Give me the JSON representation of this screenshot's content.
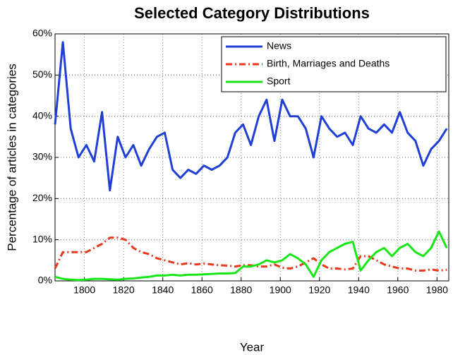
{
  "chart_data": {
    "type": "line",
    "title": "Selected Category Distributions",
    "x_label": "Year",
    "y_label": "Percentage of articles in categories",
    "x": [
      1785,
      1789,
      1793,
      1797,
      1801,
      1805,
      1809,
      1813,
      1817,
      1821,
      1825,
      1829,
      1833,
      1837,
      1841,
      1845,
      1849,
      1853,
      1857,
      1861,
      1865,
      1869,
      1873,
      1877,
      1881,
      1885,
      1889,
      1893,
      1897,
      1901,
      1905,
      1909,
      1913,
      1917,
      1921,
      1925,
      1929,
      1933,
      1937,
      1941,
      1945,
      1949,
      1953,
      1957,
      1961,
      1965,
      1969,
      1973,
      1977,
      1981,
      1985
    ],
    "series": [
      {
        "name": "News",
        "color": "#1f3fd6",
        "dash": "solid",
        "values": [
          38,
          58,
          37,
          30,
          33,
          29,
          41,
          22,
          35,
          30,
          33,
          28,
          32,
          35,
          36,
          27,
          25,
          27,
          26,
          28,
          27,
          28,
          30,
          36,
          38,
          33,
          40,
          44,
          34,
          44,
          40,
          40,
          37,
          30,
          40,
          37,
          35,
          36,
          33,
          40,
          37,
          36,
          38,
          36,
          41,
          36,
          34,
          28,
          32,
          34,
          37
        ]
      },
      {
        "name": "Birth, Marriages and Deaths",
        "color": "#e8381b",
        "dash": "dashdot",
        "values": [
          3,
          7,
          7,
          7,
          7,
          8,
          9,
          10.5,
          10.5,
          10,
          8,
          7,
          6.5,
          5.5,
          5,
          4.5,
          4,
          4.3,
          4,
          4.2,
          4,
          3.8,
          3.7,
          3.5,
          3.8,
          3.8,
          3.5,
          3.5,
          4,
          3.2,
          3,
          3.5,
          4.5,
          5.5,
          4,
          3,
          3,
          2.8,
          3,
          6,
          6,
          5,
          4,
          3.5,
          3,
          3,
          2.5,
          2.5,
          2.8,
          2.5,
          2.7
        ]
      },
      {
        "name": "Sport",
        "color": "#19e619",
        "dash": "solid",
        "values": [
          1,
          0.5,
          0.3,
          0.2,
          0.3,
          0.5,
          0.5,
          0.4,
          0.3,
          0.5,
          0.6,
          0.8,
          1,
          1.3,
          1.3,
          1.5,
          1.3,
          1.5,
          1.5,
          1.6,
          1.7,
          1.8,
          1.8,
          1.9,
          3.5,
          3.5,
          4,
          5,
          4.5,
          5,
          6.5,
          5.5,
          4,
          1,
          5,
          7,
          8,
          9,
          9.5,
          2.5,
          5,
          7,
          8,
          6,
          8,
          9,
          7,
          6,
          8,
          12,
          8
        ]
      }
    ],
    "xlim": [
      1785,
      1986
    ],
    "xticks": [
      1800,
      1820,
      1840,
      1860,
      1880,
      1900,
      1920,
      1940,
      1960,
      1980
    ],
    "ylim": [
      0,
      60
    ],
    "yticks": [
      {
        "value": 0,
        "label": "0%"
      },
      {
        "value": 10,
        "label": "10%"
      },
      {
        "value": 20,
        "label": "20%"
      },
      {
        "value": 30,
        "label": "30%"
      },
      {
        "value": 40,
        "label": "40%"
      },
      {
        "value": 50,
        "label": "50%"
      },
      {
        "value": 60,
        "label": "60%"
      }
    ],
    "grid": true,
    "legend": "upper right"
  }
}
